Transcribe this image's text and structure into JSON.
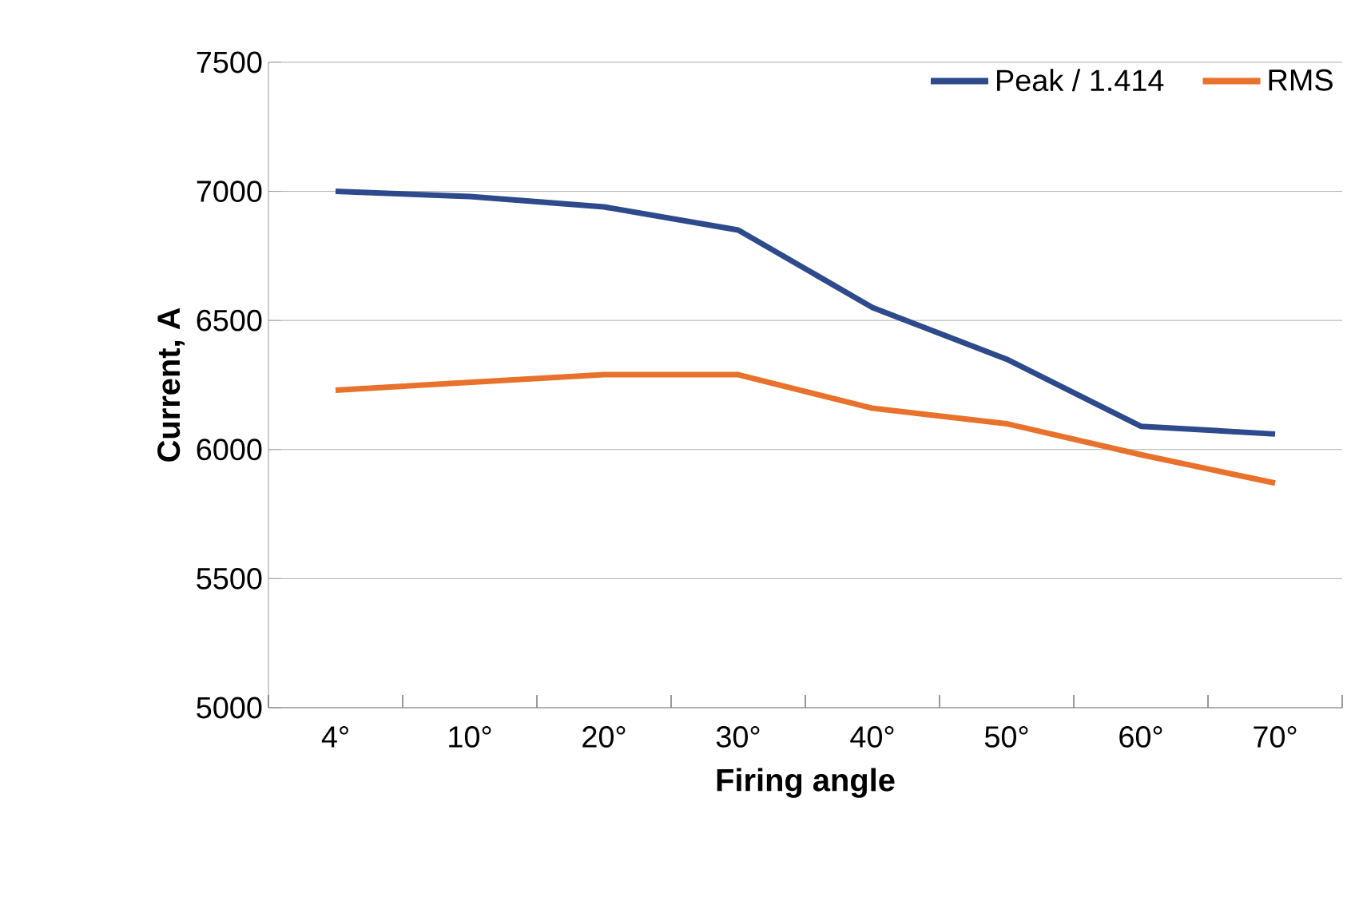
{
  "chart_data": {
    "type": "line",
    "xlabel": "Firing angle",
    "ylabel": "Current, A",
    "categories": [
      "4°",
      "10°",
      "20°",
      "30°",
      "40°",
      "50°",
      "60°",
      "70°"
    ],
    "series": [
      {
        "name": "Peak / 1.414",
        "color": "#2e4a8c",
        "values": [
          7000,
          6980,
          6940,
          6850,
          6550,
          6350,
          6090,
          6060
        ]
      },
      {
        "name": "RMS",
        "color": "#e8722c",
        "values": [
          6230,
          6260,
          6290,
          6290,
          6160,
          6100,
          5980,
          5870
        ]
      }
    ],
    "ylim": [
      5000,
      7500
    ],
    "yticks": [
      5000,
      5500,
      6000,
      6500,
      7000,
      7500
    ],
    "grid": "y",
    "legend": "top right",
    "marker": "none",
    "line_style": "solid"
  }
}
